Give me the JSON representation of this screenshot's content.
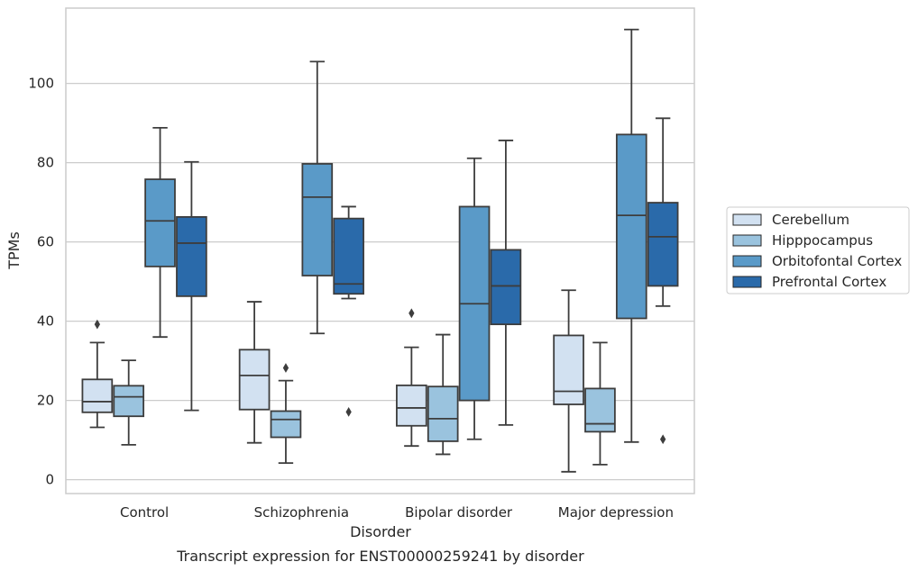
{
  "chart_data": {
    "type": "box",
    "caption": "Transcript expression for ENST00000259241 by disorder",
    "xlabel": "Disorder",
    "ylabel": "TPMs",
    "ylim": [
      -3.5,
      119
    ],
    "yticks": [
      0,
      20,
      40,
      60,
      80,
      100
    ],
    "grid": "y",
    "legend_position": "right",
    "categories": [
      "Control",
      "Schizophrenia",
      "Bipolar disorder",
      "Major depression"
    ],
    "series": [
      {
        "name": "Cerebellum",
        "color": "#d2e1f1",
        "boxes": [
          {
            "whisker_low": 13.2,
            "q1": 17.0,
            "median": 19.7,
            "q3": 25.3,
            "whisker_high": 34.6,
            "outliers": [
              39.2
            ]
          },
          {
            "whisker_low": 9.3,
            "q1": 17.7,
            "median": 26.3,
            "q3": 32.8,
            "whisker_high": 44.9,
            "outliers": []
          },
          {
            "whisker_low": 8.5,
            "q1": 13.6,
            "median": 18.1,
            "q3": 23.8,
            "whisker_high": 33.4,
            "outliers": [
              42.0
            ]
          },
          {
            "whisker_low": 2.0,
            "q1": 19.0,
            "median": 22.3,
            "q3": 36.4,
            "whisker_high": 47.8,
            "outliers": []
          }
        ]
      },
      {
        "name": "Hipppocampus",
        "color": "#9ac3de",
        "boxes": [
          {
            "whisker_low": 8.8,
            "q1": 16.0,
            "median": 20.9,
            "q3": 23.7,
            "whisker_high": 30.1,
            "outliers": []
          },
          {
            "whisker_low": 4.2,
            "q1": 10.7,
            "median": 15.2,
            "q3": 17.3,
            "whisker_high": 25.0,
            "outliers": [
              28.2
            ]
          },
          {
            "whisker_low": 6.4,
            "q1": 9.7,
            "median": 15.4,
            "q3": 23.5,
            "whisker_high": 36.6,
            "outliers": []
          },
          {
            "whisker_low": 3.8,
            "q1": 12.1,
            "median": 14.1,
            "q3": 23.0,
            "whisker_high": 34.6,
            "outliers": []
          }
        ]
      },
      {
        "name": "Orbitofontal Cortex",
        "color": "#5a9ac8",
        "boxes": [
          {
            "whisker_low": 36.0,
            "q1": 53.8,
            "median": 65.3,
            "q3": 75.8,
            "whisker_high": 88.8,
            "outliers": []
          },
          {
            "whisker_low": 36.9,
            "q1": 51.5,
            "median": 71.3,
            "q3": 79.7,
            "whisker_high": 105.5,
            "outliers": []
          },
          {
            "whisker_low": 10.2,
            "q1": 20.0,
            "median": 44.4,
            "q3": 68.9,
            "whisker_high": 81.1,
            "outliers": []
          },
          {
            "whisker_low": 9.5,
            "q1": 40.7,
            "median": 66.7,
            "q3": 87.1,
            "whisker_high": 113.6,
            "outliers": []
          }
        ]
      },
      {
        "name": "Prefrontal Cortex",
        "color": "#2a6aaa",
        "boxes": [
          {
            "whisker_low": 17.5,
            "q1": 46.3,
            "median": 59.7,
            "q3": 66.3,
            "whisker_high": 80.2,
            "outliers": []
          },
          {
            "whisker_low": 45.7,
            "q1": 46.9,
            "median": 49.4,
            "q3": 65.9,
            "whisker_high": 68.9,
            "outliers": [
              17.1
            ]
          },
          {
            "whisker_low": 13.8,
            "q1": 39.2,
            "median": 48.9,
            "q3": 58.0,
            "whisker_high": 85.6,
            "outliers": []
          },
          {
            "whisker_low": 43.8,
            "q1": 48.9,
            "median": 61.3,
            "q3": 69.9,
            "whisker_high": 91.2,
            "outliers": [
              10.2
            ]
          }
        ]
      }
    ]
  }
}
